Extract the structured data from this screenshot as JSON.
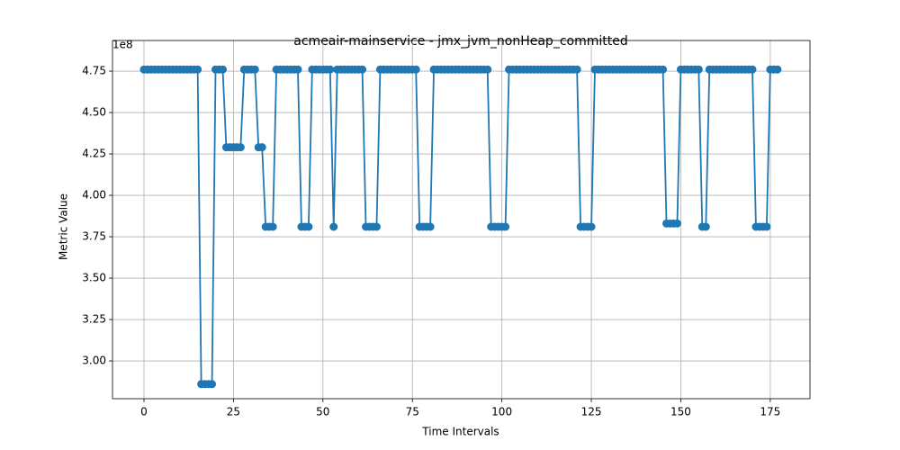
{
  "chart_data": {
    "type": "line",
    "title": "acmeair-mainservice - jmx_jvm_nonHeap_committed",
    "xlabel": "Time Intervals",
    "ylabel": "Metric Value",
    "y_offset_label": "1e8",
    "color": "#1f77b4",
    "marker": true,
    "grid": true,
    "xlim": [
      -8.8,
      186.1
    ],
    "ylim": [
      2.772,
      4.935
    ],
    "xticks": [
      0,
      25,
      50,
      75,
      100,
      125,
      150,
      175
    ],
    "yticks": [
      {
        "value": 3,
        "label": "3.00"
      },
      {
        "value": 3.25,
        "label": "3.25"
      },
      {
        "value": 3.5,
        "label": "3.50"
      },
      {
        "value": 3.75,
        "label": "3.75"
      },
      {
        "value": 4,
        "label": "4.00"
      },
      {
        "value": 4.25,
        "label": "4.25"
      },
      {
        "value": 4.5,
        "label": "4.50"
      },
      {
        "value": 4.75,
        "label": "4.75"
      }
    ],
    "x": [
      0,
      1,
      2,
      3,
      4,
      5,
      6,
      7,
      8,
      9,
      10,
      11,
      12,
      13,
      14,
      15,
      16,
      17,
      18,
      19,
      20,
      21,
      22,
      23,
      24,
      25,
      26,
      27,
      28,
      29,
      30,
      31,
      32,
      33,
      34,
      35,
      36,
      37,
      38,
      39,
      40,
      41,
      42,
      43,
      44,
      45,
      46,
      47,
      48,
      49,
      50,
      51,
      52,
      53,
      54,
      55,
      56,
      57,
      58,
      59,
      60,
      61,
      62,
      63,
      64,
      65,
      66,
      67,
      68,
      69,
      70,
      71,
      72,
      73,
      74,
      75,
      76,
      77,
      78,
      79,
      80,
      81,
      82,
      83,
      84,
      85,
      86,
      87,
      88,
      89,
      90,
      91,
      92,
      93,
      94,
      95,
      96,
      97,
      98,
      99,
      100,
      101,
      102,
      103,
      104,
      105,
      106,
      107,
      108,
      109,
      110,
      111,
      112,
      113,
      114,
      115,
      116,
      117,
      118,
      119,
      120,
      121,
      122,
      123,
      124,
      125,
      126,
      127,
      128,
      129,
      130,
      131,
      132,
      133,
      134,
      135,
      136,
      137,
      138,
      139,
      140,
      141,
      142,
      143,
      144,
      145,
      146,
      147,
      148,
      149,
      150,
      151,
      152,
      153,
      154,
      155,
      156,
      157,
      158,
      159,
      160,
      161,
      162,
      163,
      164,
      165,
      166,
      167,
      168,
      169,
      170,
      171,
      172,
      173,
      174,
      175,
      176,
      177
    ],
    "values": [
      4.76,
      4.76,
      4.76,
      4.76,
      4.76,
      4.76,
      4.76,
      4.76,
      4.76,
      4.76,
      4.76,
      4.76,
      4.76,
      4.76,
      4.76,
      4.76,
      2.86,
      2.86,
      2.86,
      2.86,
      4.76,
      4.76,
      4.76,
      4.29,
      4.29,
      4.29,
      4.29,
      4.29,
      4.76,
      4.76,
      4.76,
      4.76,
      4.29,
      4.29,
      3.81,
      3.81,
      3.81,
      4.76,
      4.76,
      4.76,
      4.76,
      4.76,
      4.76,
      4.76,
      3.81,
      3.81,
      3.81,
      4.76,
      4.76,
      4.76,
      4.76,
      4.76,
      4.76,
      3.81,
      4.76,
      4.76,
      4.76,
      4.76,
      4.76,
      4.76,
      4.76,
      4.76,
      3.81,
      3.81,
      3.81,
      3.81,
      4.76,
      4.76,
      4.76,
      4.76,
      4.76,
      4.76,
      4.76,
      4.76,
      4.76,
      4.76,
      4.76,
      3.81,
      3.81,
      3.81,
      3.81,
      4.76,
      4.76,
      4.76,
      4.76,
      4.76,
      4.76,
      4.76,
      4.76,
      4.76,
      4.76,
      4.76,
      4.76,
      4.76,
      4.76,
      4.76,
      4.76,
      3.81,
      3.81,
      3.81,
      3.81,
      3.81,
      4.76,
      4.76,
      4.76,
      4.76,
      4.76,
      4.76,
      4.76,
      4.76,
      4.76,
      4.76,
      4.76,
      4.76,
      4.76,
      4.76,
      4.76,
      4.76,
      4.76,
      4.76,
      4.76,
      4.76,
      3.81,
      3.81,
      3.81,
      3.81,
      4.76,
      4.76,
      4.76,
      4.76,
      4.76,
      4.76,
      4.76,
      4.76,
      4.76,
      4.76,
      4.76,
      4.76,
      4.76,
      4.76,
      4.76,
      4.76,
      4.76,
      4.76,
      4.76,
      4.76,
      3.83,
      3.83,
      3.83,
      3.83,
      4.76,
      4.76,
      4.76,
      4.76,
      4.76,
      4.76,
      3.81,
      3.81,
      4.76,
      4.76,
      4.76,
      4.76,
      4.76,
      4.76,
      4.76,
      4.76,
      4.76,
      4.76,
      4.76,
      4.76,
      4.76,
      3.81,
      3.81,
      3.81,
      3.81,
      4.76,
      4.76,
      4.76
    ]
  }
}
